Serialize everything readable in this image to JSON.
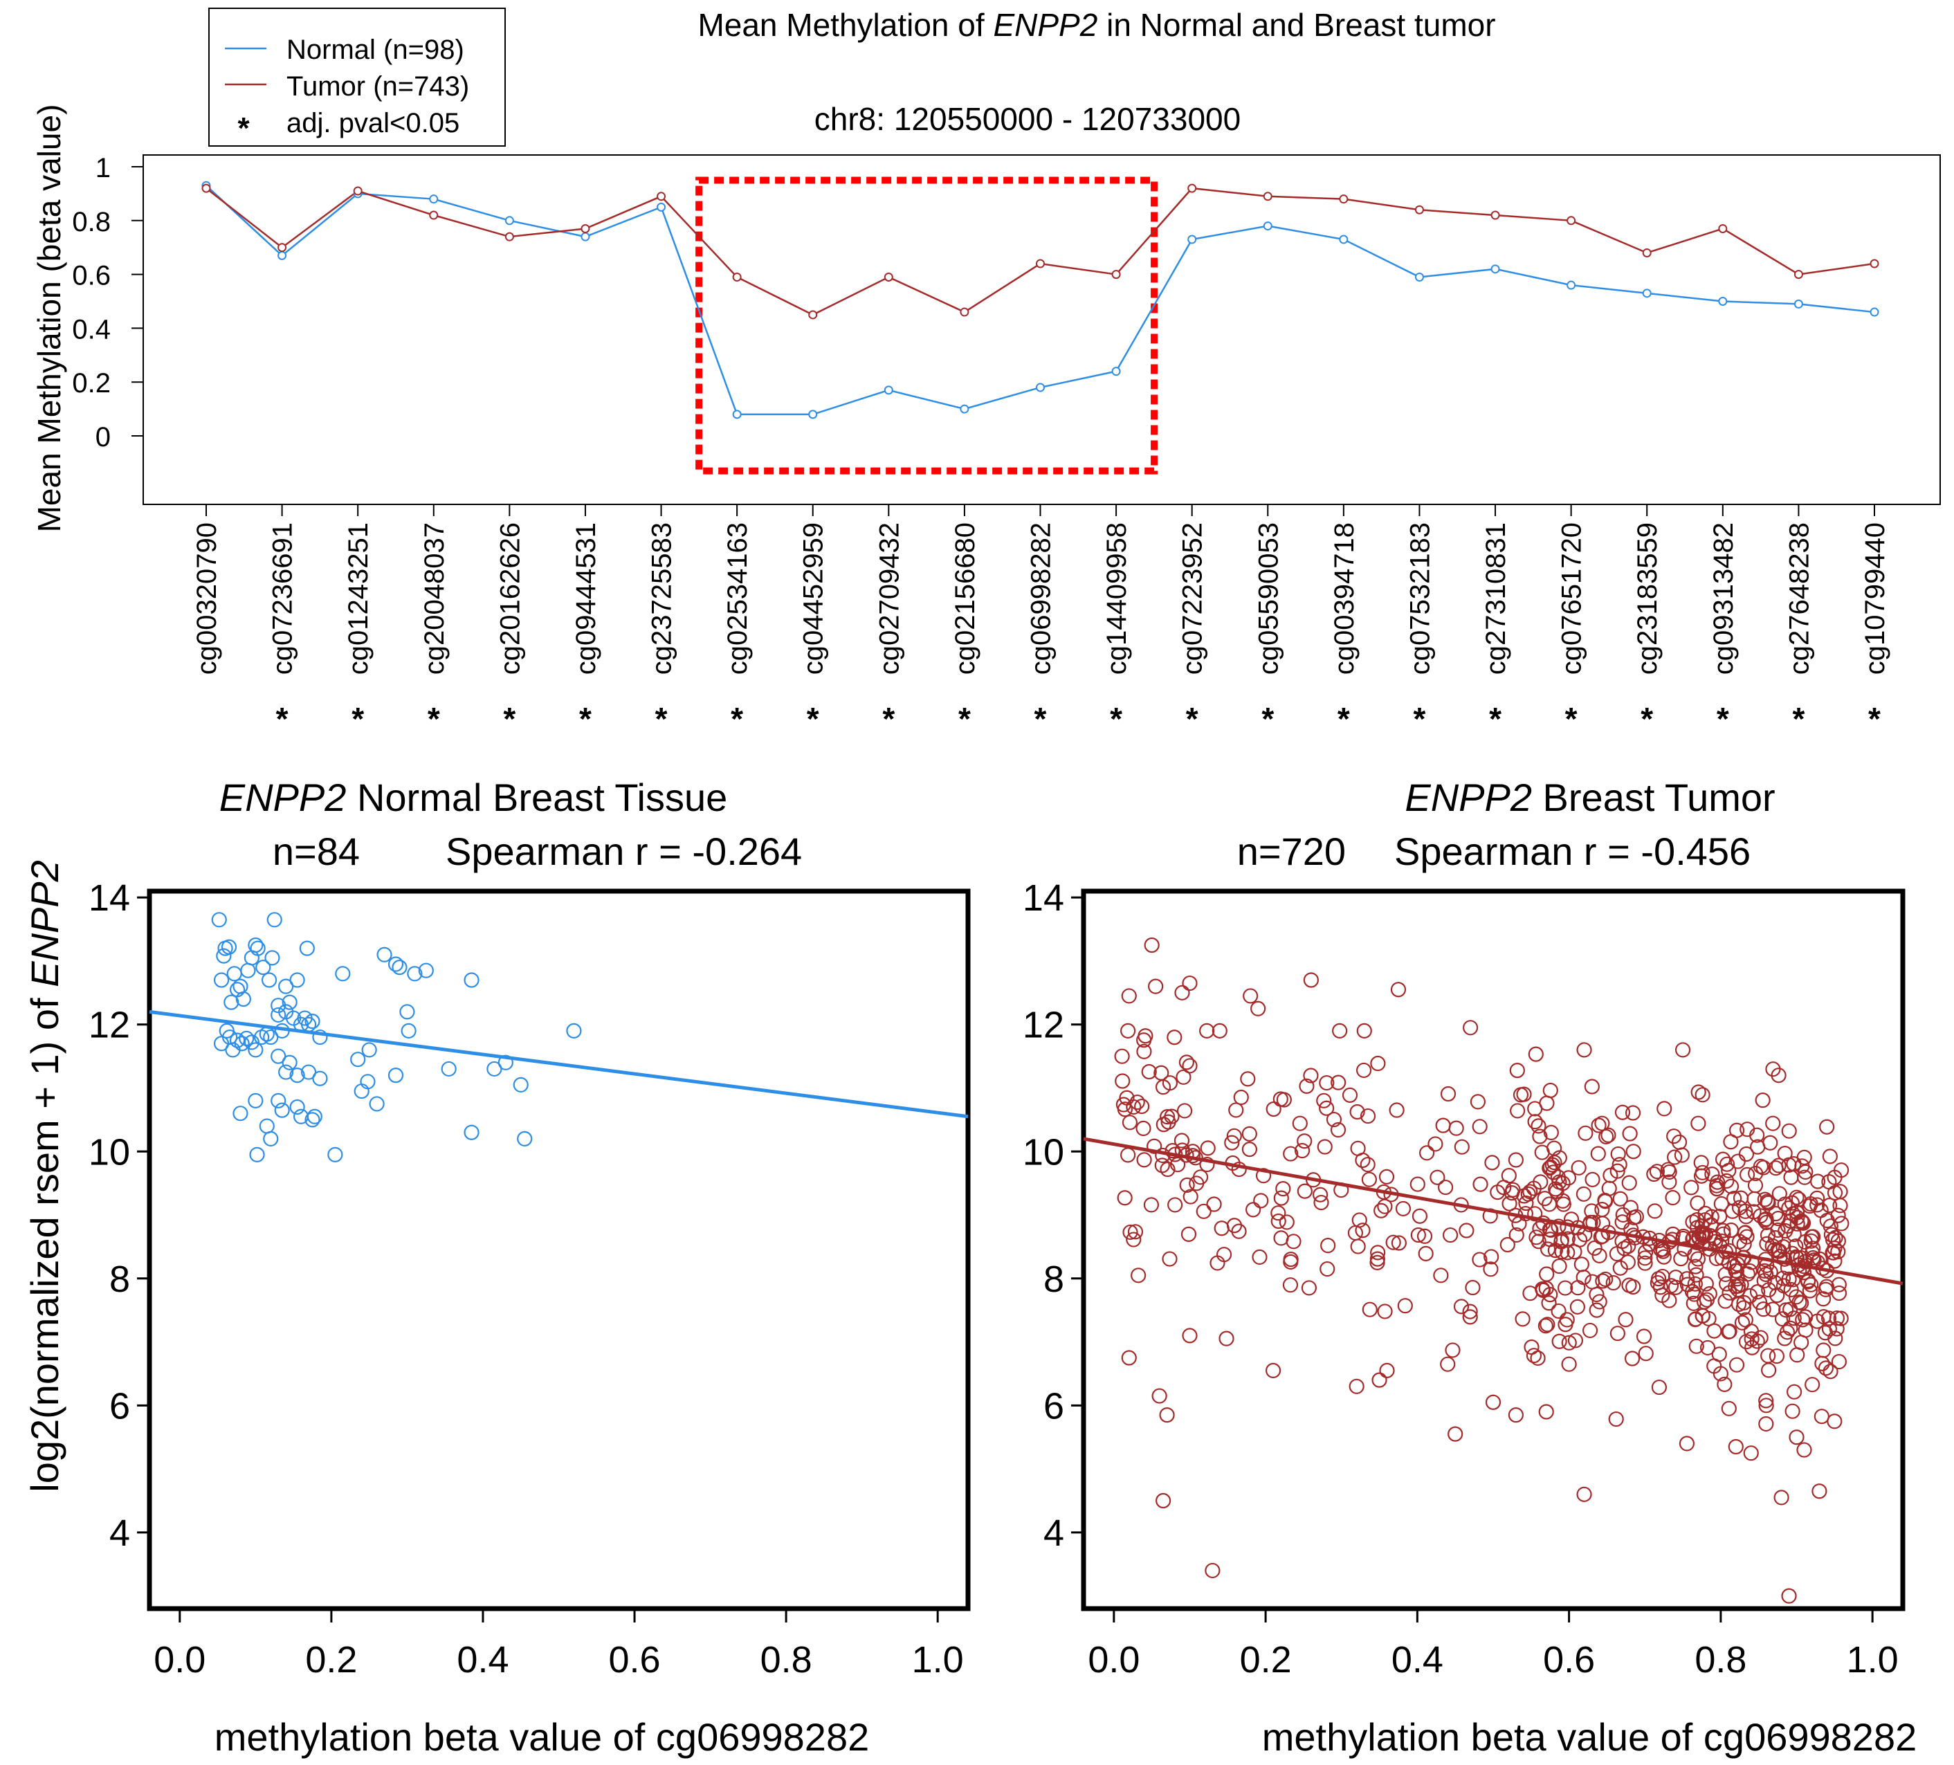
{
  "colors": {
    "normal": "#2e8ee6",
    "tumor": "#a52a2a",
    "highlight": "#ff0000",
    "axis": "#000000"
  },
  "top": {
    "title_pre": "Mean Methylation of ",
    "title_gene": "ENPP2",
    "title_post": " in Normal and Breast tumor",
    "subtitle": "chr8: 120550000 - 120733000",
    "ylabel": "Mean Methylation (beta value)",
    "legend": {
      "normal": "Normal (n=98)",
      "tumor": "Tumor (n=743)",
      "star_symbol": "*",
      "star": "adj. pval<0.05"
    }
  },
  "left": {
    "title_gene": "ENPP2",
    "title_rest": " Normal Breast Tissue",
    "stats_n": "n=84",
    "stats_r": "Spearman r = -0.264",
    "xlabel": "methylation beta value of cg06998282"
  },
  "right": {
    "title_gene": "ENPP2",
    "title_rest": "   Breast Tumor",
    "stats_n": "n=720",
    "stats_r": "Spearman r = -0.456",
    "xlabel": "methylation beta value of cg06998282"
  },
  "shared_ylabel_pre": "log2(normalized rsem + 1) of ",
  "shared_ylabel_gene": "ENPP2",
  "chart_data": [
    {
      "type": "line",
      "title": "Mean Methylation of ENPP2 in Normal and Breast tumor",
      "subtitle": "chr8: 120550000 - 120733000",
      "ylabel": "Mean Methylation (beta value)",
      "ylim": [
        -0.25,
        1.05
      ],
      "yticks": [
        0,
        0.2,
        0.4,
        0.6,
        0.8,
        1
      ],
      "categories": [
        "cg00320790",
        "cg07236691",
        "cg01243251",
        "cg20048037",
        "cg20162626",
        "cg09444531",
        "cg23725583",
        "cg02534163",
        "cg04452959",
        "cg02709432",
        "cg02156680",
        "cg06998282",
        "cg14409958",
        "cg07223952",
        "cg05590053",
        "cg00394718",
        "cg07532183",
        "cg27310831",
        "cg07651720",
        "cg23183559",
        "cg09313482",
        "cg27648238",
        "cg10799440"
      ],
      "significant": [
        false,
        true,
        true,
        true,
        true,
        true,
        true,
        true,
        true,
        true,
        true,
        true,
        true,
        true,
        true,
        true,
        true,
        true,
        true,
        true,
        true,
        true,
        true
      ],
      "series": [
        {
          "name": "Normal (n=98)",
          "values": [
            0.93,
            0.67,
            0.9,
            0.88,
            0.8,
            0.74,
            0.85,
            0.08,
            0.08,
            0.17,
            0.1,
            0.18,
            0.24,
            0.73,
            0.78,
            0.73,
            0.59,
            0.62,
            0.56,
            0.53,
            0.5,
            0.49,
            0.46
          ]
        },
        {
          "name": "Tumor (n=743)",
          "values": [
            0.92,
            0.7,
            0.91,
            0.82,
            0.74,
            0.77,
            0.89,
            0.59,
            0.45,
            0.59,
            0.46,
            0.64,
            0.6,
            0.92,
            0.89,
            0.88,
            0.84,
            0.82,
            0.8,
            0.68,
            0.77,
            0.6,
            0.64
          ]
        }
      ],
      "highlight_range": [
        "cg02534163",
        "cg14409958"
      ],
      "legend": "top-left"
    },
    {
      "type": "scatter",
      "title": "ENPP2 Normal Breast Tissue",
      "subtitle": "n=84    Spearman r = -0.264",
      "xlabel": "methylation beta value of cg06998282",
      "ylabel": "log2(normalized rsem + 1) of ENPP2",
      "xlim": [
        -0.04,
        1.04
      ],
      "ylim": [
        2.8,
        14.1
      ],
      "xticks": [
        "0.0",
        "0.2",
        "0.4",
        "0.6",
        "0.8",
        "1.0"
      ],
      "yticks": [
        4,
        6,
        8,
        10,
        12,
        14
      ],
      "color": "#2e8ee6",
      "fit": {
        "x0": -0.04,
        "y0": 12.2,
        "x1": 1.04,
        "y1": 10.55
      },
      "n_points": 84,
      "points": [
        [
          0.052,
          13.65
        ],
        [
          0.06,
          13.2
        ],
        [
          0.058,
          13.08
        ],
        [
          0.065,
          13.22
        ],
        [
          0.055,
          12.7
        ],
        [
          0.068,
          12.35
        ],
        [
          0.072,
          12.8
        ],
        [
          0.076,
          12.55
        ],
        [
          0.08,
          12.6
        ],
        [
          0.084,
          12.4
        ],
        [
          0.09,
          12.85
        ],
        [
          0.095,
          13.05
        ],
        [
          0.1,
          13.25
        ],
        [
          0.103,
          13.2
        ],
        [
          0.11,
          12.9
        ],
        [
          0.118,
          12.7
        ],
        [
          0.122,
          13.05
        ],
        [
          0.125,
          13.65
        ],
        [
          0.13,
          12.3
        ],
        [
          0.14,
          12.6
        ],
        [
          0.145,
          12.35
        ],
        [
          0.155,
          12.7
        ],
        [
          0.165,
          12.1
        ],
        [
          0.17,
          12.0
        ],
        [
          0.168,
          13.2
        ],
        [
          0.185,
          11.8
        ],
        [
          0.055,
          11.7
        ],
        [
          0.062,
          11.9
        ],
        [
          0.066,
          11.8
        ],
        [
          0.07,
          11.6
        ],
        [
          0.076,
          11.75
        ],
        [
          0.082,
          11.7
        ],
        [
          0.088,
          11.78
        ],
        [
          0.095,
          11.72
        ],
        [
          0.1,
          11.6
        ],
        [
          0.108,
          11.8
        ],
        [
          0.115,
          11.85
        ],
        [
          0.12,
          11.8
        ],
        [
          0.13,
          12.15
        ],
        [
          0.135,
          11.9
        ],
        [
          0.14,
          12.2
        ],
        [
          0.15,
          12.1
        ],
        [
          0.16,
          12.0
        ],
        [
          0.175,
          12.05
        ],
        [
          0.13,
          11.5
        ],
        [
          0.14,
          11.25
        ],
        [
          0.155,
          11.2
        ],
        [
          0.17,
          11.25
        ],
        [
          0.185,
          11.15
        ],
        [
          0.145,
          11.4
        ],
        [
          0.08,
          10.6
        ],
        [
          0.1,
          10.8
        ],
        [
          0.115,
          10.4
        ],
        [
          0.12,
          10.2
        ],
        [
          0.102,
          9.95
        ],
        [
          0.135,
          10.65
        ],
        [
          0.13,
          10.8
        ],
        [
          0.155,
          10.7
        ],
        [
          0.16,
          10.55
        ],
        [
          0.175,
          10.5
        ],
        [
          0.178,
          10.55
        ],
        [
          0.205,
          9.95
        ],
        [
          0.215,
          12.8
        ],
        [
          0.235,
          11.45
        ],
        [
          0.24,
          10.95
        ],
        [
          0.25,
          11.6
        ],
        [
          0.248,
          11.1
        ],
        [
          0.26,
          10.75
        ],
        [
          0.27,
          13.1
        ],
        [
          0.285,
          12.95
        ],
        [
          0.29,
          12.9
        ],
        [
          0.285,
          11.2
        ],
        [
          0.3,
          12.2
        ],
        [
          0.302,
          11.9
        ],
        [
          0.31,
          12.8
        ],
        [
          0.325,
          12.85
        ],
        [
          0.355,
          11.3
        ],
        [
          0.385,
          12.7
        ],
        [
          0.385,
          10.3
        ],
        [
          0.415,
          11.3
        ],
        [
          0.43,
          11.4
        ],
        [
          0.45,
          11.05
        ],
        [
          0.455,
          10.2
        ],
        [
          0.52,
          11.9
        ]
      ]
    },
    {
      "type": "scatter",
      "title": "ENPP2 Breast Tumor",
      "subtitle": "n=720    Spearman r = -0.456",
      "xlabel": "methylation beta value of cg06998282",
      "ylabel": "log2(normalized rsem + 1) of ENPP2",
      "xlim": [
        -0.04,
        1.04
      ],
      "ylim": [
        2.8,
        14.1
      ],
      "xticks": [
        "0.0",
        "0.2",
        "0.4",
        "0.6",
        "0.8",
        "1.0"
      ],
      "yticks": [
        4,
        6,
        8,
        10,
        12,
        14
      ],
      "color": "#a52a2a",
      "fit": {
        "x0": -0.04,
        "y0": 10.2,
        "x1": 1.04,
        "y1": 7.92
      },
      "n_points": 720,
      "seed": 24681357,
      "note_points": "distribution dense at beta 0.55-0.95, y ~6-10; sparse at low beta",
      "outliers": [
        [
          0.05,
          13.25
        ],
        [
          0.02,
          12.45
        ],
        [
          0.055,
          12.6
        ],
        [
          0.1,
          12.65
        ],
        [
          0.09,
          12.5
        ],
        [
          0.26,
          12.7
        ],
        [
          0.18,
          12.45
        ],
        [
          0.19,
          12.25
        ],
        [
          0.375,
          12.55
        ],
        [
          0.47,
          11.95
        ],
        [
          0.62,
          11.6
        ],
        [
          0.75,
          11.6
        ],
        [
          0.065,
          4.5
        ],
        [
          0.13,
          3.4
        ],
        [
          0.62,
          4.6
        ],
        [
          0.88,
          4.55
        ],
        [
          0.93,
          4.65
        ],
        [
          0.89,
          3.0
        ],
        [
          0.45,
          5.55
        ],
        [
          0.53,
          5.85
        ],
        [
          0.57,
          5.9
        ],
        [
          0.82,
          5.35
        ],
        [
          0.84,
          5.25
        ],
        [
          0.9,
          5.5
        ],
        [
          0.91,
          5.3
        ],
        [
          0.95,
          5.75
        ],
        [
          0.02,
          6.75
        ],
        [
          0.06,
          6.15
        ],
        [
          0.07,
          5.85
        ],
        [
          0.1,
          7.1
        ],
        [
          0.21,
          6.55
        ],
        [
          0.32,
          6.3
        ],
        [
          0.35,
          6.4
        ],
        [
          0.36,
          6.55
        ],
        [
          0.44,
          6.65
        ],
        [
          0.5,
          6.05
        ],
        [
          0.6,
          6.65
        ],
        [
          0.8,
          6.5
        ],
        [
          0.86,
          6.0
        ]
      ]
    }
  ]
}
